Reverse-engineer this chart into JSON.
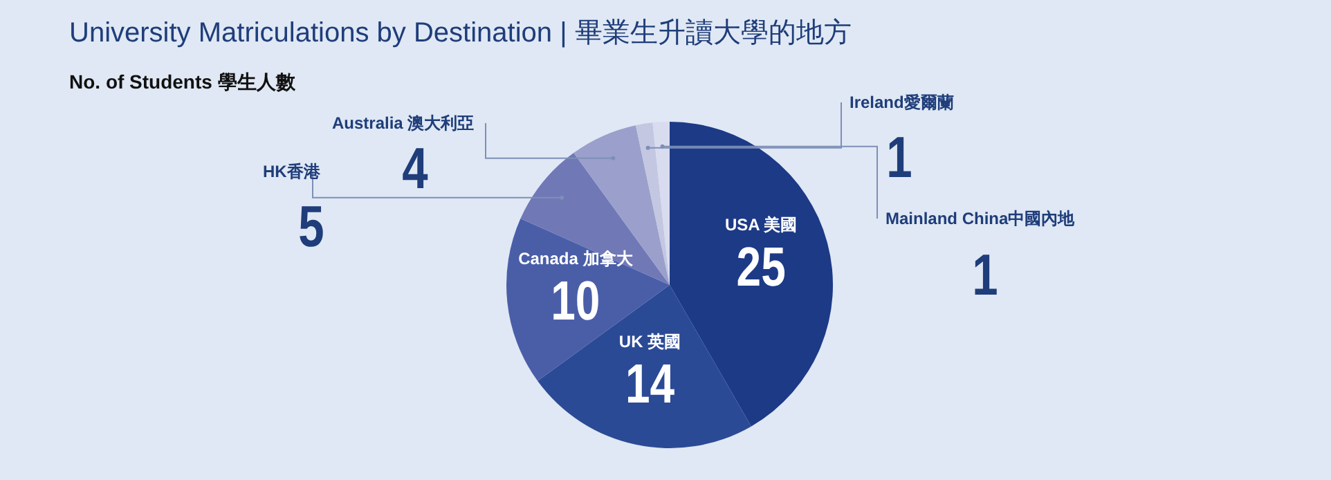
{
  "chart_data": {
    "type": "pie",
    "title": "University Matriculations by Destination | 畢業生升讀大學的地方",
    "subtitle": "No. of Students 學生人數",
    "categories": [
      "USA 美國",
      "UK 英國",
      "Canada 加拿大",
      "HK香港",
      "Australia 澳大利亞",
      "Ireland愛爾蘭",
      "Mainland China中國內地"
    ],
    "values": [
      25,
      14,
      10,
      5,
      4,
      1,
      1
    ],
    "colors": [
      "#1d3a87",
      "#2b4a96",
      "#4a5ea8",
      "#7078b6",
      "#9aa0cb",
      "#c3c7e1",
      "#d9dcee"
    ],
    "data_labels": true,
    "legend": false
  }
}
